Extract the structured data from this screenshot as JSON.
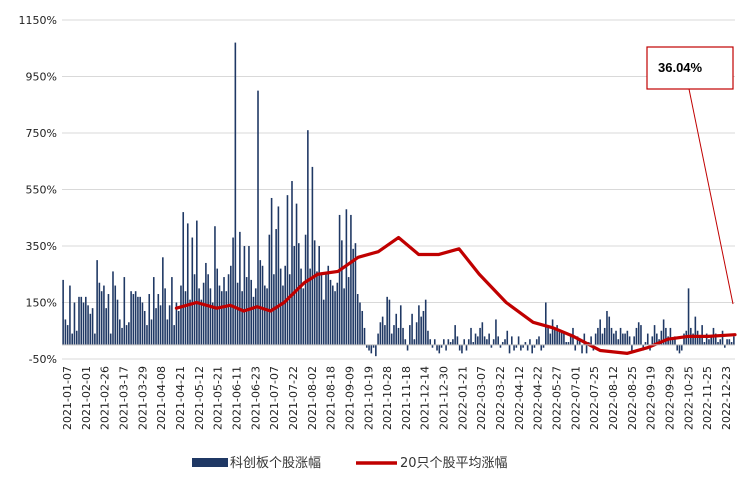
{
  "chart_data": {
    "type": "bar",
    "title": "",
    "xlabel": "",
    "ylabel": "",
    "ylim": [
      -50,
      1150
    ],
    "y_ticks": [
      -50,
      150,
      350,
      550,
      750,
      950,
      1150
    ],
    "y_tick_labels": [
      "-50%",
      "150%",
      "350%",
      "550%",
      "750%",
      "950%",
      "1150%"
    ],
    "x_tick_labels": [
      "2021-01-07",
      "2021-02-01",
      "2021-02-26",
      "2021-03-17",
      "2021-03-29",
      "2021-04-08",
      "2021-04-21",
      "2021-05-12",
      "2021-05-21",
      "2021-06-11",
      "2021-06-23",
      "2021-07-07",
      "2021-07-22",
      "2021-08-02",
      "2021-08-18",
      "2021-09-09",
      "2021-10-19",
      "2021-10-28",
      "2021-11-18",
      "2021-12-14",
      "2021-12-30",
      "2022-01-21",
      "2022-03-07",
      "2022-03-22",
      "2022-04-12",
      "2022-04-22",
      "2022-05-27",
      "2022-07-01",
      "2022-07-25",
      "2022-08-12",
      "2022-08-25",
      "2022-09-19",
      "2022-09-29",
      "2022-10-25",
      "2022-11-25",
      "2022-12-23"
    ],
    "grid": "horizontal",
    "legend_position": "bottom",
    "series": [
      {
        "name": "科创板个股涨幅",
        "type": "bar",
        "color": "#1f3864",
        "values": [
          230,
          90,
          70,
          210,
          40,
          150,
          50,
          170,
          170,
          150,
          170,
          140,
          110,
          130,
          40,
          300,
          220,
          190,
          210,
          130,
          180,
          40,
          260,
          210,
          160,
          90,
          60,
          240,
          70,
          80,
          190,
          180,
          190,
          170,
          170,
          150,
          120,
          70,
          180,
          90,
          240,
          130,
          180,
          140,
          310,
          200,
          90,
          140,
          240,
          70,
          150,
          120,
          210,
          470,
          190,
          430,
          160,
          380,
          250,
          440,
          200,
          160,
          220,
          290,
          250,
          200,
          150,
          420,
          270,
          210,
          190,
          240,
          190,
          250,
          280,
          380,
          1070,
          220,
          400,
          190,
          350,
          240,
          350,
          230,
          170,
          200,
          900,
          300,
          280,
          210,
          200,
          390,
          520,
          250,
          410,
          490,
          270,
          210,
          280,
          530,
          250,
          580,
          350,
          500,
          360,
          270,
          200,
          390,
          760,
          270,
          630,
          370,
          260,
          350,
          250,
          160,
          250,
          280,
          230,
          210,
          190,
          220,
          460,
          370,
          200,
          480,
          240,
          460,
          340,
          360,
          180,
          150,
          120,
          60,
          -10,
          -20,
          -30,
          -10,
          -40,
          40,
          80,
          100,
          70,
          170,
          160,
          40,
          70,
          110,
          60,
          140,
          60,
          20,
          -20,
          70,
          110,
          20,
          80,
          140,
          100,
          120,
          160,
          50,
          20,
          -10,
          20,
          -20,
          -30,
          -10,
          20,
          -20,
          20,
          10,
          20,
          70,
          30,
          -20,
          -30,
          20,
          -20,
          20,
          60,
          10,
          40,
          30,
          60,
          80,
          30,
          20,
          40,
          -10,
          20,
          90,
          30,
          -10,
          10,
          20,
          50,
          -30,
          30,
          -20,
          -10,
          30,
          -20,
          -10,
          10,
          -20,
          20,
          -30,
          -10,
          20,
          30,
          -20,
          -10,
          150,
          60,
          40,
          90,
          60,
          70,
          50,
          50,
          40,
          10,
          10,
          40,
          60,
          -20,
          30,
          20,
          -30,
          40,
          -30,
          10,
          30,
          -20,
          40,
          60,
          90,
          40,
          60,
          120,
          100,
          60,
          40,
          50,
          20,
          60,
          40,
          40,
          50,
          30,
          -20,
          30,
          60,
          80,
          70,
          -20,
          10,
          40,
          -20,
          30,
          70,
          40,
          20,
          50,
          90,
          60,
          30,
          60,
          20,
          30,
          -20,
          -30,
          -20,
          40,
          50,
          200,
          60,
          40,
          100,
          50,
          30,
          70,
          10,
          40,
          20,
          30,
          60,
          40,
          10,
          20,
          50,
          -10,
          20,
          20,
          10,
          30
        ]
      },
      {
        "name": "20只个股平均涨幅",
        "type": "line",
        "color": "#c00000",
        "points": [
          [
            0.17,
            130
          ],
          [
            0.2,
            150
          ],
          [
            0.23,
            130
          ],
          [
            0.25,
            140
          ],
          [
            0.27,
            120
          ],
          [
            0.29,
            135
          ],
          [
            0.31,
            120
          ],
          [
            0.33,
            150
          ],
          [
            0.36,
            220
          ],
          [
            0.38,
            250
          ],
          [
            0.41,
            260
          ],
          [
            0.44,
            310
          ],
          [
            0.47,
            330
          ],
          [
            0.5,
            380
          ],
          [
            0.53,
            320
          ],
          [
            0.56,
            320
          ],
          [
            0.59,
            340
          ],
          [
            0.62,
            250
          ],
          [
            0.66,
            150
          ],
          [
            0.7,
            80
          ],
          [
            0.73,
            60
          ],
          [
            0.76,
            30
          ],
          [
            0.8,
            -20
          ],
          [
            0.84,
            -30
          ],
          [
            0.87,
            -10
          ],
          [
            0.9,
            20
          ],
          [
            0.93,
            30
          ],
          [
            0.96,
            30
          ],
          [
            1.0,
            36.04
          ]
        ]
      }
    ],
    "annotations": [
      {
        "text": "36.04%",
        "type": "callout"
      }
    ]
  },
  "legend": {
    "bar_label": "科创板个股涨幅",
    "line_label": "20只个股平均涨幅"
  },
  "colors": {
    "bar": "#1f3864",
    "line": "#c00000",
    "callout_border": "#c00000",
    "grid": "#d9d9d9"
  }
}
